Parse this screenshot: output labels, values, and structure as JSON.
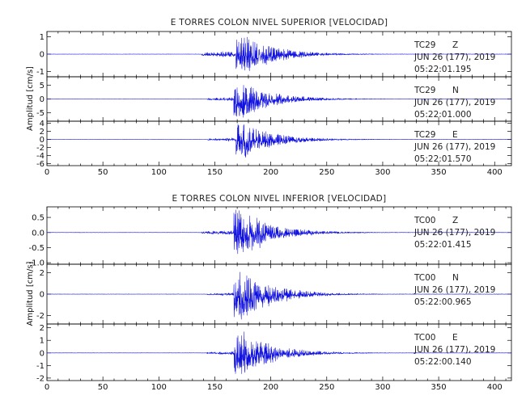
{
  "chart_data": [
    {
      "type": "line",
      "title": "E TORRES COLON NIVEL SUPERIOR [VELOCIDAD]",
      "ylabel": "Amplitud [cm/s]",
      "xlabel": "",
      "xlim": [
        0,
        415
      ],
      "xticks": [
        "0",
        "50",
        "100",
        "150",
        "200",
        "250",
        "300",
        "350",
        "400"
      ],
      "panels": [
        {
          "station": "TC29",
          "component": "Z",
          "date": "JUN 26 (177), 2019",
          "time": "05:22:01.195",
          "ylim": [
            -1.3,
            1.3
          ],
          "yticks": [
            "1",
            "0",
            "-1"
          ],
          "signal": {
            "onset": 140,
            "peak_time": 172,
            "peak_amplitude": 1.2,
            "pre_amplitude": 0.2
          }
        },
        {
          "station": "TC29",
          "component": "N",
          "date": "JUN 26 (177), 2019",
          "time": "05:22:01.000",
          "ylim": [
            -8,
            8
          ],
          "yticks": [
            "5",
            "0",
            "-5"
          ],
          "signal": {
            "onset": 145,
            "peak_time": 170,
            "peak_amplitude": 7.0,
            "pre_amplitude": 0.8
          }
        },
        {
          "station": "TC29",
          "component": "E",
          "date": "JUN 26 (177), 2019",
          "time": "05:22:01.570",
          "ylim": [
            -6.5,
            4.5
          ],
          "yticks": [
            "4",
            "2",
            "0",
            "-2",
            "-4",
            "-6"
          ],
          "signal": {
            "onset": 145,
            "peak_time": 172,
            "peak_amplitude": 4.5,
            "pre_amplitude": 0.5
          }
        }
      ]
    },
    {
      "type": "line",
      "title": "E TORRES COLON NIVEL INFERIOR [VELOCIDAD]",
      "ylabel": "Amplitud [cm/s]",
      "xlabel": "",
      "xlim": [
        0,
        415
      ],
      "xticks": [
        "0",
        "50",
        "100",
        "150",
        "200",
        "250",
        "300",
        "350",
        "400"
      ],
      "panels": [
        {
          "station": "TC00",
          "component": "Z",
          "date": "JUN 26 (177), 2019",
          "time": "05:22:01.415",
          "ylim": [
            -1.05,
            0.85
          ],
          "yticks": [
            "0.5",
            "0.0",
            "-0.5",
            "-1.0"
          ],
          "signal": {
            "onset": 140,
            "peak_time": 170,
            "peak_amplitude": 0.8,
            "pre_amplitude": 0.08
          }
        },
        {
          "station": "TC00",
          "component": "N",
          "date": "JUN 26 (177), 2019",
          "time": "05:22:00.965",
          "ylim": [
            -2.8,
            2.8
          ],
          "yticks": [
            "2",
            "0",
            "-2"
          ],
          "signal": {
            "onset": 145,
            "peak_time": 170,
            "peak_amplitude": 2.5,
            "pre_amplitude": 0.15
          }
        },
        {
          "station": "TC00",
          "component": "E",
          "date": "JUN 26 (177), 2019",
          "time": "05:22:00.140",
          "ylim": [
            -2.2,
            2.3
          ],
          "yticks": [
            "2",
            "1",
            "0",
            "-1",
            "-2"
          ],
          "signal": {
            "onset": 145,
            "peak_time": 170,
            "peak_amplitude": 2.0,
            "pre_amplitude": 0.15
          }
        }
      ]
    }
  ],
  "colors": {
    "trace": "#1010e0",
    "axes": "#000000",
    "text": "#222222"
  }
}
